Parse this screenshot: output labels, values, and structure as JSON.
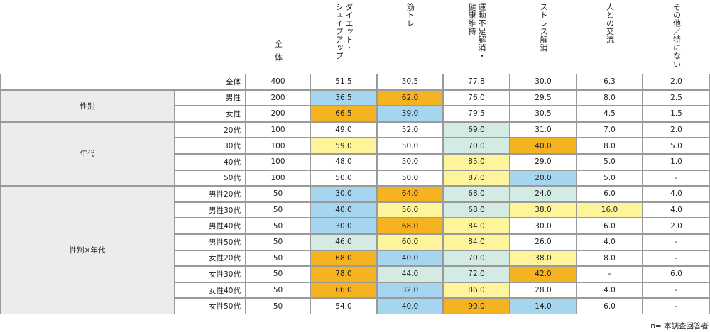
{
  "header": {
    "all_label": "全体",
    "columns": [
      "ダイエット・\nシェイプアップ",
      "筋トレ",
      "運動不足解消・\n健康維持",
      "ストレス解消",
      "人との交流",
      "その他／特にない"
    ]
  },
  "colors": {
    "orange": "#f5b221",
    "blue": "#a6d5ef",
    "yellow": "#fdf49b",
    "mint": "#d3ebe3",
    "white": "#ffffff",
    "group_bg": "#ececec",
    "border": "#9a9a9a"
  },
  "groups": [
    {
      "label": "",
      "start": 0,
      "span": 1
    },
    {
      "label": "性別",
      "start": 1,
      "span": 2
    },
    {
      "label": "年代",
      "start": 3,
      "span": 4
    },
    {
      "label": "性別×年代",
      "start": 7,
      "span": 8
    }
  ],
  "rows": [
    {
      "label": "全体",
      "n": "400",
      "values": [
        "51.5",
        "50.5",
        "77.8",
        "30.0",
        "6.3",
        "2.0"
      ],
      "hl": [
        "",
        "",
        "",
        "",
        "",
        ""
      ]
    },
    {
      "label": "男性",
      "n": "200",
      "values": [
        "36.5",
        "62.0",
        "76.0",
        "29.5",
        "8.0",
        "2.5"
      ],
      "hl": [
        "blue",
        "orange",
        "",
        "",
        "",
        ""
      ]
    },
    {
      "label": "女性",
      "n": "200",
      "values": [
        "66.5",
        "39.0",
        "79.5",
        "30.5",
        "4.5",
        "1.5"
      ],
      "hl": [
        "orange",
        "blue",
        "",
        "",
        "",
        ""
      ]
    },
    {
      "label": "20代",
      "n": "100",
      "values": [
        "49.0",
        "52.0",
        "69.0",
        "31.0",
        "7.0",
        "2.0"
      ],
      "hl": [
        "",
        "",
        "mint",
        "",
        "",
        ""
      ]
    },
    {
      "label": "30代",
      "n": "100",
      "values": [
        "59.0",
        "50.0",
        "70.0",
        "40.0",
        "8.0",
        "5.0"
      ],
      "hl": [
        "yellow",
        "",
        "mint",
        "orange",
        "",
        ""
      ]
    },
    {
      "label": "40代",
      "n": "100",
      "values": [
        "48.0",
        "50.0",
        "85.0",
        "29.0",
        "5.0",
        "1.0"
      ],
      "hl": [
        "",
        "",
        "yellow",
        "",
        "",
        ""
      ]
    },
    {
      "label": "50代",
      "n": "100",
      "values": [
        "50.0",
        "50.0",
        "87.0",
        "20.0",
        "5.0",
        "-"
      ],
      "hl": [
        "",
        "",
        "yellow",
        "blue",
        "",
        ""
      ]
    },
    {
      "label": "男性20代",
      "n": "50",
      "values": [
        "30.0",
        "64.0",
        "68.0",
        "24.0",
        "6.0",
        "4.0"
      ],
      "hl": [
        "blue",
        "orange",
        "mint",
        "mint",
        "",
        ""
      ]
    },
    {
      "label": "男性30代",
      "n": "50",
      "values": [
        "40.0",
        "56.0",
        "68.0",
        "38.0",
        "16.0",
        "4.0"
      ],
      "hl": [
        "blue",
        "yellow",
        "mint",
        "yellow",
        "yellow",
        ""
      ]
    },
    {
      "label": "男性40代",
      "n": "50",
      "values": [
        "30.0",
        "68.0",
        "84.0",
        "30.0",
        "6.0",
        "2.0"
      ],
      "hl": [
        "blue",
        "orange",
        "yellow",
        "",
        "",
        ""
      ]
    },
    {
      "label": "男性50代",
      "n": "50",
      "values": [
        "46.0",
        "60.0",
        "84.0",
        "26.0",
        "4.0",
        "-"
      ],
      "hl": [
        "mint",
        "yellow",
        "yellow",
        "",
        "",
        ""
      ]
    },
    {
      "label": "女性20代",
      "n": "50",
      "values": [
        "68.0",
        "40.0",
        "70.0",
        "38.0",
        "8.0",
        "-"
      ],
      "hl": [
        "orange",
        "blue",
        "mint",
        "yellow",
        "",
        ""
      ]
    },
    {
      "label": "女性30代",
      "n": "50",
      "values": [
        "78.0",
        "44.0",
        "72.0",
        "42.0",
        "-",
        "6.0"
      ],
      "hl": [
        "orange",
        "mint",
        "mint",
        "orange",
        "",
        ""
      ]
    },
    {
      "label": "女性40代",
      "n": "50",
      "values": [
        "66.0",
        "32.0",
        "86.0",
        "28.0",
        "4.0",
        "-"
      ],
      "hl": [
        "orange",
        "blue",
        "yellow",
        "",
        "",
        ""
      ]
    },
    {
      "label": "女性50代",
      "n": "50",
      "values": [
        "54.0",
        "40.0",
        "90.0",
        "14.0",
        "6.0",
        "-"
      ],
      "hl": [
        "",
        "blue",
        "orange",
        "blue",
        "",
        ""
      ]
    }
  ],
  "note": "n= 本調査回答者"
}
